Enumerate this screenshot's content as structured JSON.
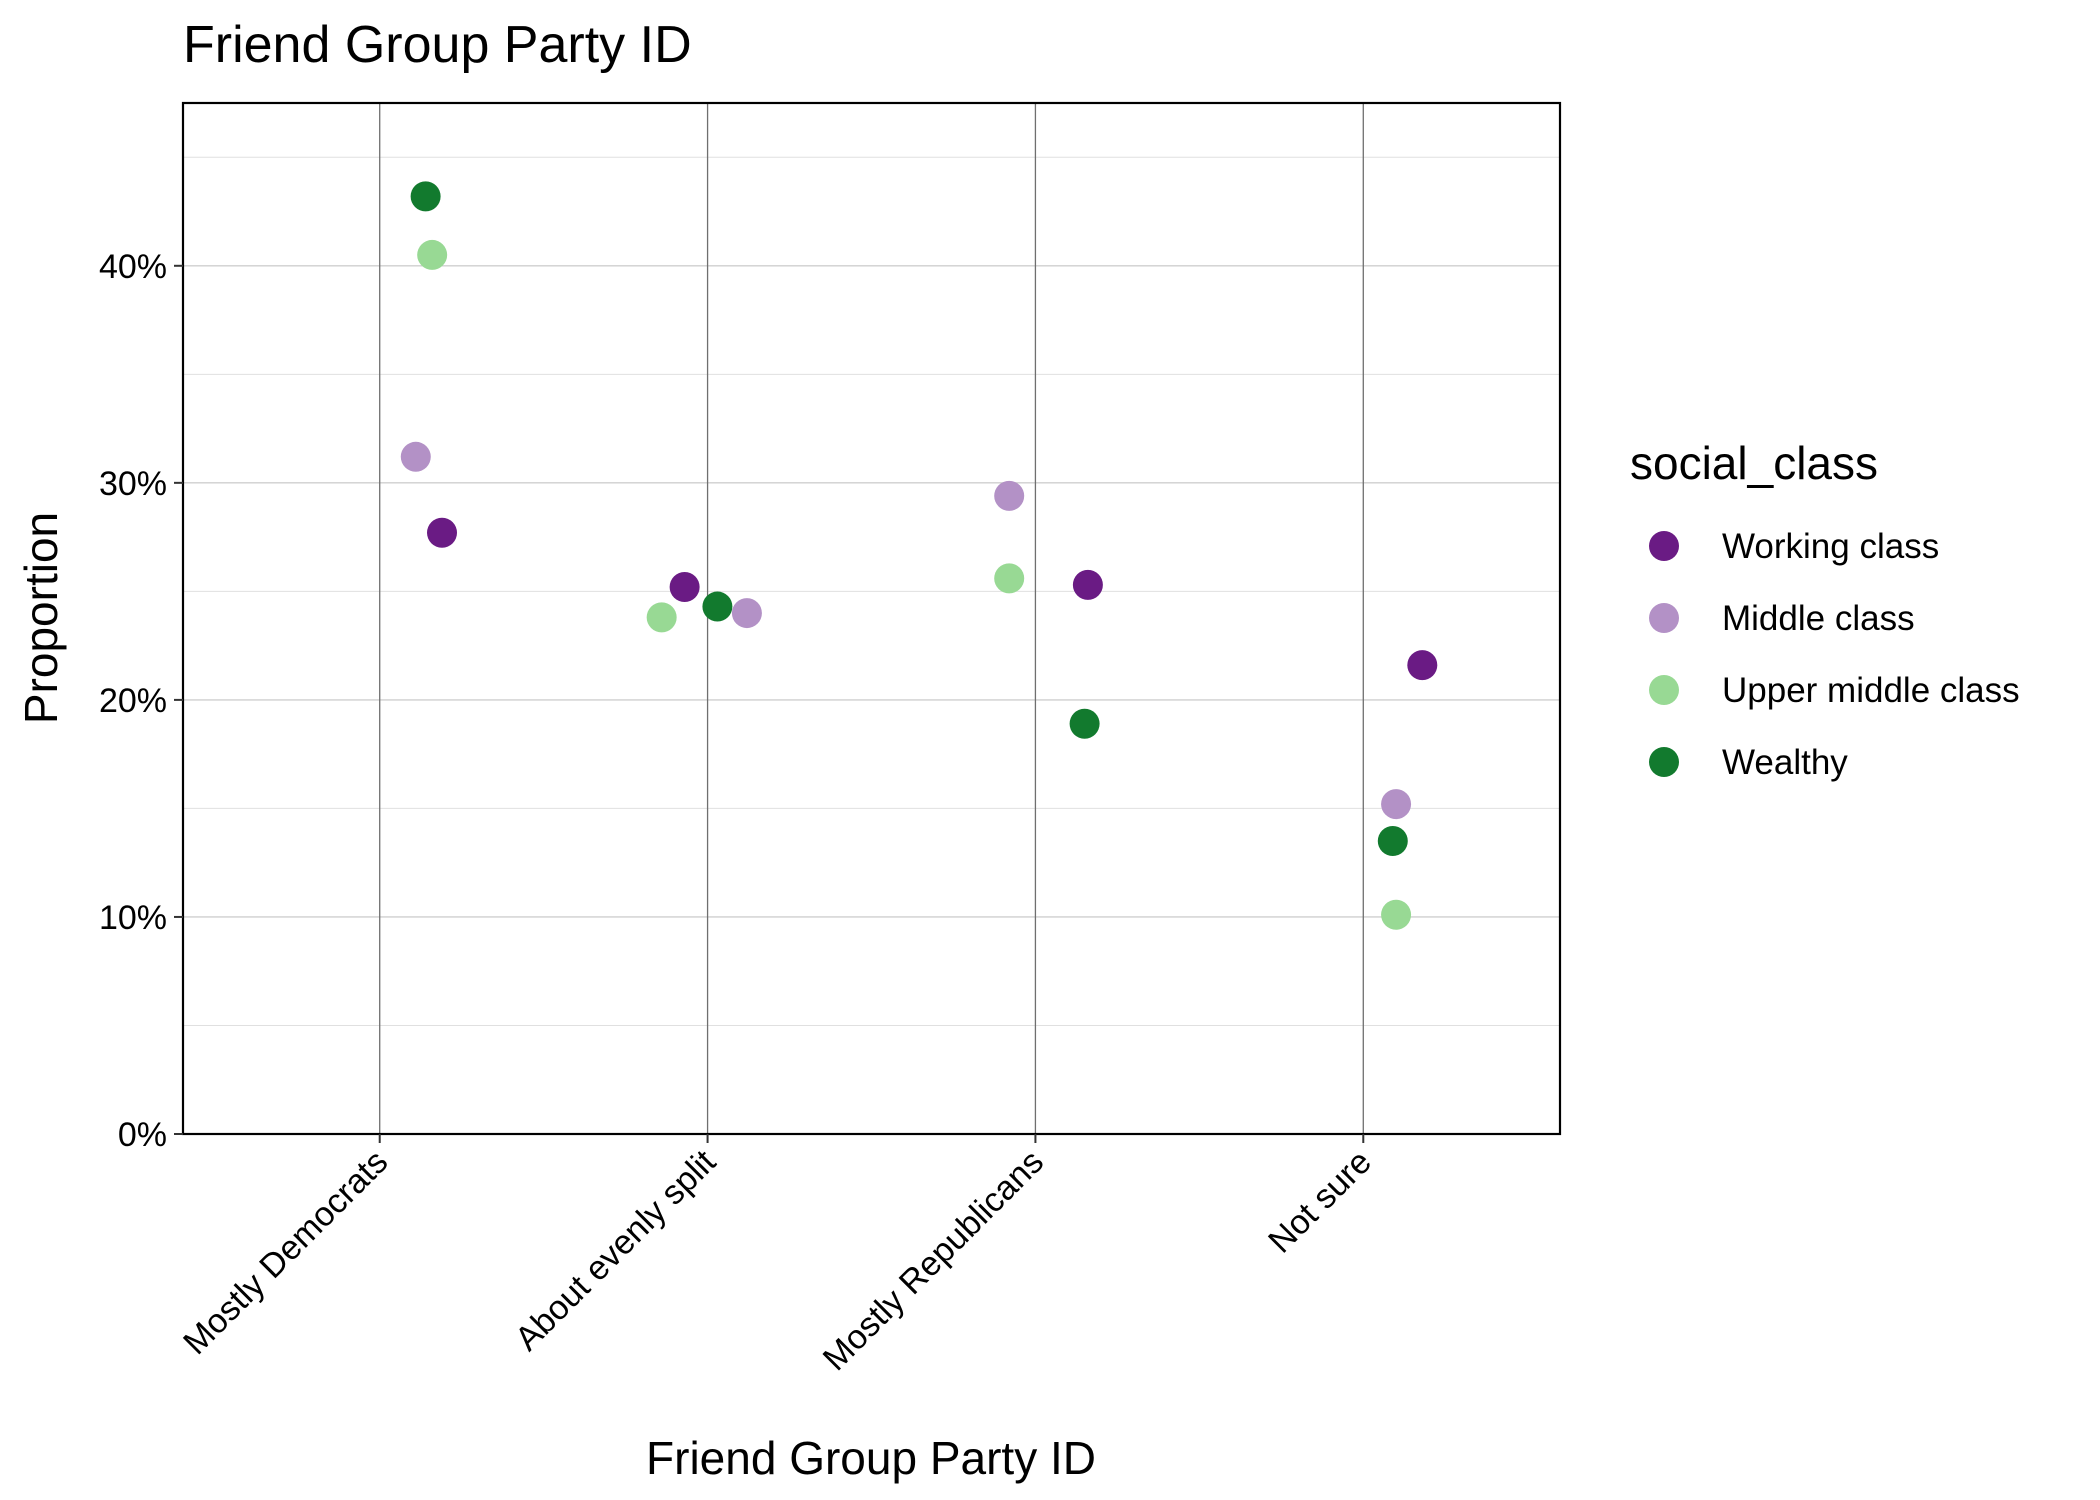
{
  "chart_data": {
    "type": "scatter",
    "title": "Friend Group Party ID",
    "xlabel": "Friend Group Party ID",
    "ylabel": "Proportion",
    "categories": [
      "Mostly Democrats",
      "About evenly split",
      "Mostly Republicans",
      "Not sure"
    ],
    "ylim": [
      0,
      0.475
    ],
    "yticks": [
      0,
      0.1,
      0.2,
      0.3,
      0.4
    ],
    "ytick_labels": [
      "0%",
      "10%",
      "20%",
      "30%",
      "40%"
    ],
    "grid": true,
    "legend": {
      "title": "social_class",
      "position": "right"
    },
    "series": [
      {
        "name": "Working class",
        "color": "#6a1b84",
        "values": [
          0.277,
          0.252,
          0.253,
          0.216
        ],
        "jitter": [
          0.19,
          -0.07,
          0.16,
          0.18
        ]
      },
      {
        "name": "Middle class",
        "color": "#b391c6",
        "values": [
          0.312,
          0.24,
          0.294,
          0.152
        ],
        "jitter": [
          0.11,
          0.12,
          -0.08,
          0.1
        ]
      },
      {
        "name": "Upper middle class",
        "color": "#98d994",
        "values": [
          0.405,
          0.238,
          0.256,
          0.101
        ],
        "jitter": [
          0.16,
          -0.14,
          -0.08,
          0.1
        ]
      },
      {
        "name": "Wealthy",
        "color": "#127a2e",
        "values": [
          0.432,
          0.243,
          0.189,
          0.135
        ],
        "jitter": [
          0.14,
          0.03,
          0.15,
          0.09
        ]
      }
    ]
  }
}
